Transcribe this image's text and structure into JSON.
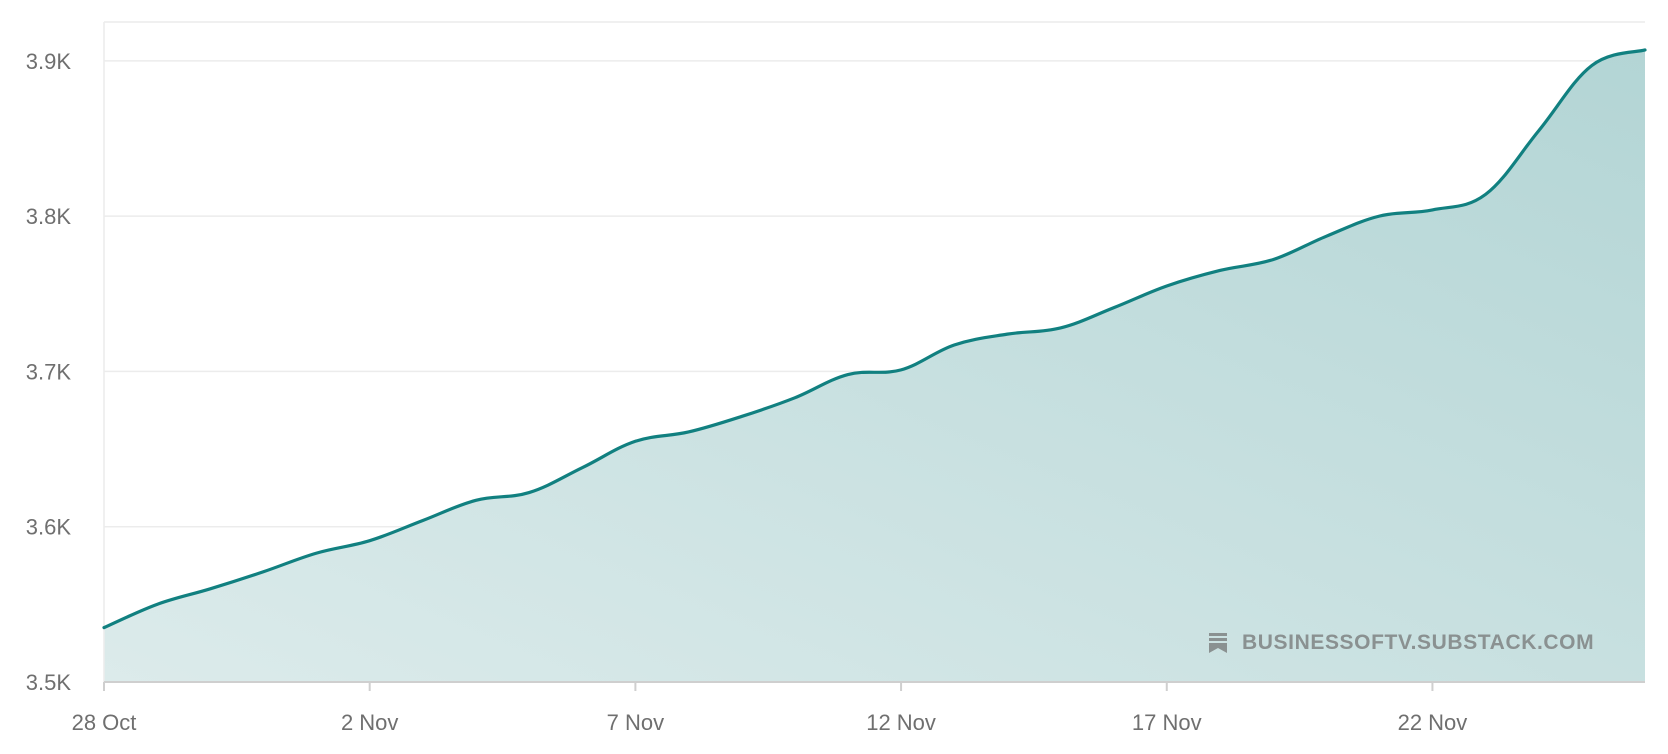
{
  "watermark": {
    "text": "BUSINESSOFTV.SUBSTACK.COM",
    "icon": "substack-bookmark-icon"
  },
  "colors": {
    "line": "#118080",
    "fill_top": "#b3d5d5",
    "fill_bottom": "#dcebeb",
    "grid": "#ececec",
    "axis": "#cfcfcf",
    "tick_text": "#6f6f6f",
    "watermark": "#8a9191"
  },
  "chart_data": {
    "type": "area",
    "title": "",
    "xlabel": "",
    "ylabel": "",
    "x": [
      "2023-10-28",
      "2023-10-29",
      "2023-10-30",
      "2023-10-31",
      "2023-11-01",
      "2023-11-02",
      "2023-11-03",
      "2023-11-04",
      "2023-11-05",
      "2023-11-06",
      "2023-11-07",
      "2023-11-08",
      "2023-11-09",
      "2023-11-10",
      "2023-11-11",
      "2023-11-12",
      "2023-11-13",
      "2023-11-14",
      "2023-11-15",
      "2023-11-16",
      "2023-11-17",
      "2023-11-18",
      "2023-11-19",
      "2023-11-20",
      "2023-11-21",
      "2023-11-22",
      "2023-11-23",
      "2023-11-24",
      "2023-11-25",
      "2023-11-26"
    ],
    "series": [
      {
        "values": [
          3535,
          3550,
          3560,
          3571,
          3583,
          3591,
          3604,
          3617,
          3622,
          3638,
          3655,
          3661,
          3671,
          3683,
          3698,
          3701,
          3717,
          3724,
          3728,
          3741,
          3755,
          3765,
          3772,
          3787,
          3800,
          3804,
          3814,
          3855,
          3897,
          3907
        ]
      }
    ],
    "xticks": [
      "28 Oct",
      "2 Nov",
      "7 Nov",
      "12 Nov",
      "17 Nov",
      "22 Nov"
    ],
    "xtick_dates": [
      "2023-10-28",
      "2023-11-02",
      "2023-11-07",
      "2023-11-12",
      "2023-11-17",
      "2023-11-22"
    ],
    "yticks": [
      3500,
      3600,
      3700,
      3800,
      3900
    ],
    "ytick_labels": [
      "3.5K",
      "3.6K",
      "3.7K",
      "3.8K",
      "3.9K"
    ],
    "ylim": [
      3500,
      3925
    ],
    "xlim": [
      "2023-10-28",
      "2023-11-26"
    ],
    "grid": true,
    "legend": "none"
  }
}
